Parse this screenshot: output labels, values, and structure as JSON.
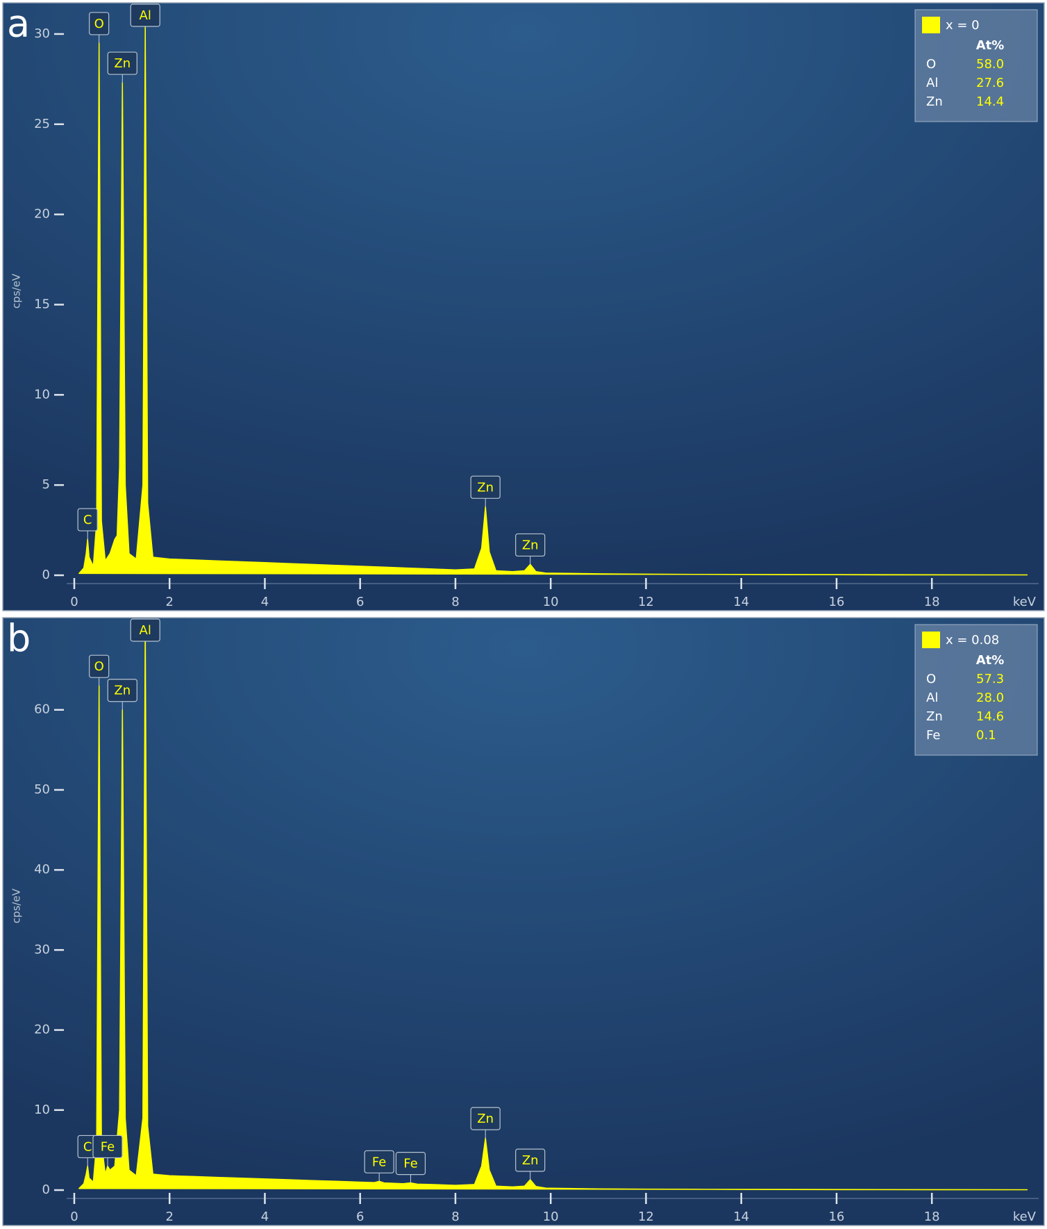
{
  "chart_data": [
    {
      "type": "area",
      "panel_label": "a",
      "x_label": "keV",
      "y_label": "cps/eV",
      "xlim": [
        -0.16,
        20.3
      ],
      "ylim": [
        0,
        31.5
      ],
      "xticks": [
        0,
        2,
        4,
        6,
        8,
        10,
        12,
        14,
        16,
        18
      ],
      "yticks": [
        0,
        5,
        10,
        15,
        20,
        25,
        30
      ],
      "x": [
        0.1,
        0.2,
        0.25,
        0.28,
        0.31,
        0.4,
        0.47,
        0.52,
        0.57,
        0.65,
        0.75,
        0.85,
        0.9,
        0.95,
        1.01,
        1.07,
        1.15,
        1.3,
        1.44,
        1.49,
        1.54,
        1.65,
        2,
        2.5,
        3,
        3.5,
        4,
        4.5,
        5,
        5.5,
        6,
        6.5,
        7,
        7.5,
        8,
        8.4,
        8.55,
        8.63,
        8.71,
        8.85,
        9.2,
        9.45,
        9.57,
        9.69,
        9.9,
        10.5,
        11,
        12,
        13,
        14,
        15,
        16,
        17,
        18,
        19,
        20
      ],
      "series": [
        {
          "name": "x = 0",
          "color": "#ffff00",
          "values": [
            0.1,
            0.4,
            1.2,
            2.0,
            1.0,
            0.5,
            3,
            29.5,
            3,
            0.8,
            1.2,
            2.0,
            2.2,
            6,
            27.3,
            5,
            1.2,
            0.9,
            5,
            30.5,
            4,
            1.0,
            0.9,
            0.85,
            0.8,
            0.75,
            0.7,
            0.65,
            0.6,
            0.55,
            0.5,
            0.45,
            0.4,
            0.35,
            0.3,
            0.35,
            1.5,
            3.8,
            1.3,
            0.25,
            0.2,
            0.25,
            0.6,
            0.2,
            0.12,
            0.1,
            0.08,
            0.06,
            0.05,
            0.04,
            0.03,
            0.03,
            0.02,
            0.02,
            0.02,
            0.02
          ]
        }
      ],
      "annotations": [
        {
          "text": "C",
          "x": 0.28
        },
        {
          "text": "O",
          "x": 0.52
        },
        {
          "text": "Zn",
          "x": 1.01
        },
        {
          "text": "Al",
          "x": 1.49
        },
        {
          "text": "Zn",
          "x": 8.63
        },
        {
          "text": "Zn",
          "x": 9.57
        }
      ],
      "composition": {
        "header": "At%",
        "rows": [
          [
            "O",
            "58.0"
          ],
          [
            "Al",
            "27.6"
          ],
          [
            "Zn",
            "14.4"
          ]
        ]
      }
    },
    {
      "type": "area",
      "panel_label": "b",
      "x_label": "keV",
      "y_label": "cps/eV",
      "xlim": [
        -0.16,
        20.3
      ],
      "ylim": [
        0,
        71
      ],
      "xticks": [
        0,
        2,
        4,
        6,
        8,
        10,
        12,
        14,
        16,
        18
      ],
      "yticks": [
        0,
        10,
        20,
        30,
        40,
        50,
        60
      ],
      "x": [
        0.1,
        0.2,
        0.25,
        0.28,
        0.31,
        0.4,
        0.47,
        0.52,
        0.57,
        0.65,
        0.7,
        0.75,
        0.85,
        0.95,
        1.01,
        1.07,
        1.15,
        1.3,
        1.44,
        1.49,
        1.54,
        1.65,
        2,
        2.5,
        3,
        3.5,
        4,
        4.5,
        5,
        5.5,
        6,
        6.3,
        6.4,
        6.5,
        6.9,
        7.06,
        7.2,
        7.5,
        8,
        8.4,
        8.55,
        8.63,
        8.71,
        8.85,
        9.2,
        9.45,
        9.57,
        9.69,
        9.9,
        10.5,
        11,
        12,
        13,
        14,
        15,
        16,
        17,
        18,
        19,
        20
      ],
      "series": [
        {
          "name": "x = 0.08",
          "color": "#ffff00",
          "values": [
            0.2,
            0.8,
            2,
            3,
            1.5,
            1,
            6,
            63,
            6,
            2,
            3,
            2.5,
            3,
            10,
            60,
            9,
            2.5,
            1.8,
            9,
            71,
            8,
            2,
            1.8,
            1.7,
            1.6,
            1.5,
            1.4,
            1.3,
            1.2,
            1.1,
            1.0,
            0.95,
            1.1,
            0.9,
            0.8,
            0.9,
            0.75,
            0.7,
            0.6,
            0.7,
            3,
            6.5,
            2.5,
            0.5,
            0.4,
            0.5,
            1.3,
            0.45,
            0.25,
            0.2,
            0.15,
            0.12,
            0.1,
            0.08,
            0.06,
            0.05,
            0.05,
            0.04,
            0.04,
            0.04
          ]
        }
      ],
      "annotations": [
        {
          "text": "C",
          "x": 0.28
        },
        {
          "text": "Fe",
          "x": 0.7
        },
        {
          "text": "O",
          "x": 0.52
        },
        {
          "text": "Zn",
          "x": 1.01
        },
        {
          "text": "Al",
          "x": 1.49
        },
        {
          "text": "Fe",
          "x": 6.4
        },
        {
          "text": "Fe",
          "x": 7.06
        },
        {
          "text": "Zn",
          "x": 8.63
        },
        {
          "text": "Zn",
          "x": 9.57
        }
      ],
      "composition": {
        "header": "At%",
        "rows": [
          [
            "O",
            "57.3"
          ],
          [
            "Al",
            "28.0"
          ],
          [
            "Zn",
            "14.6"
          ],
          [
            "Fe",
            "0.1"
          ]
        ]
      }
    }
  ]
}
